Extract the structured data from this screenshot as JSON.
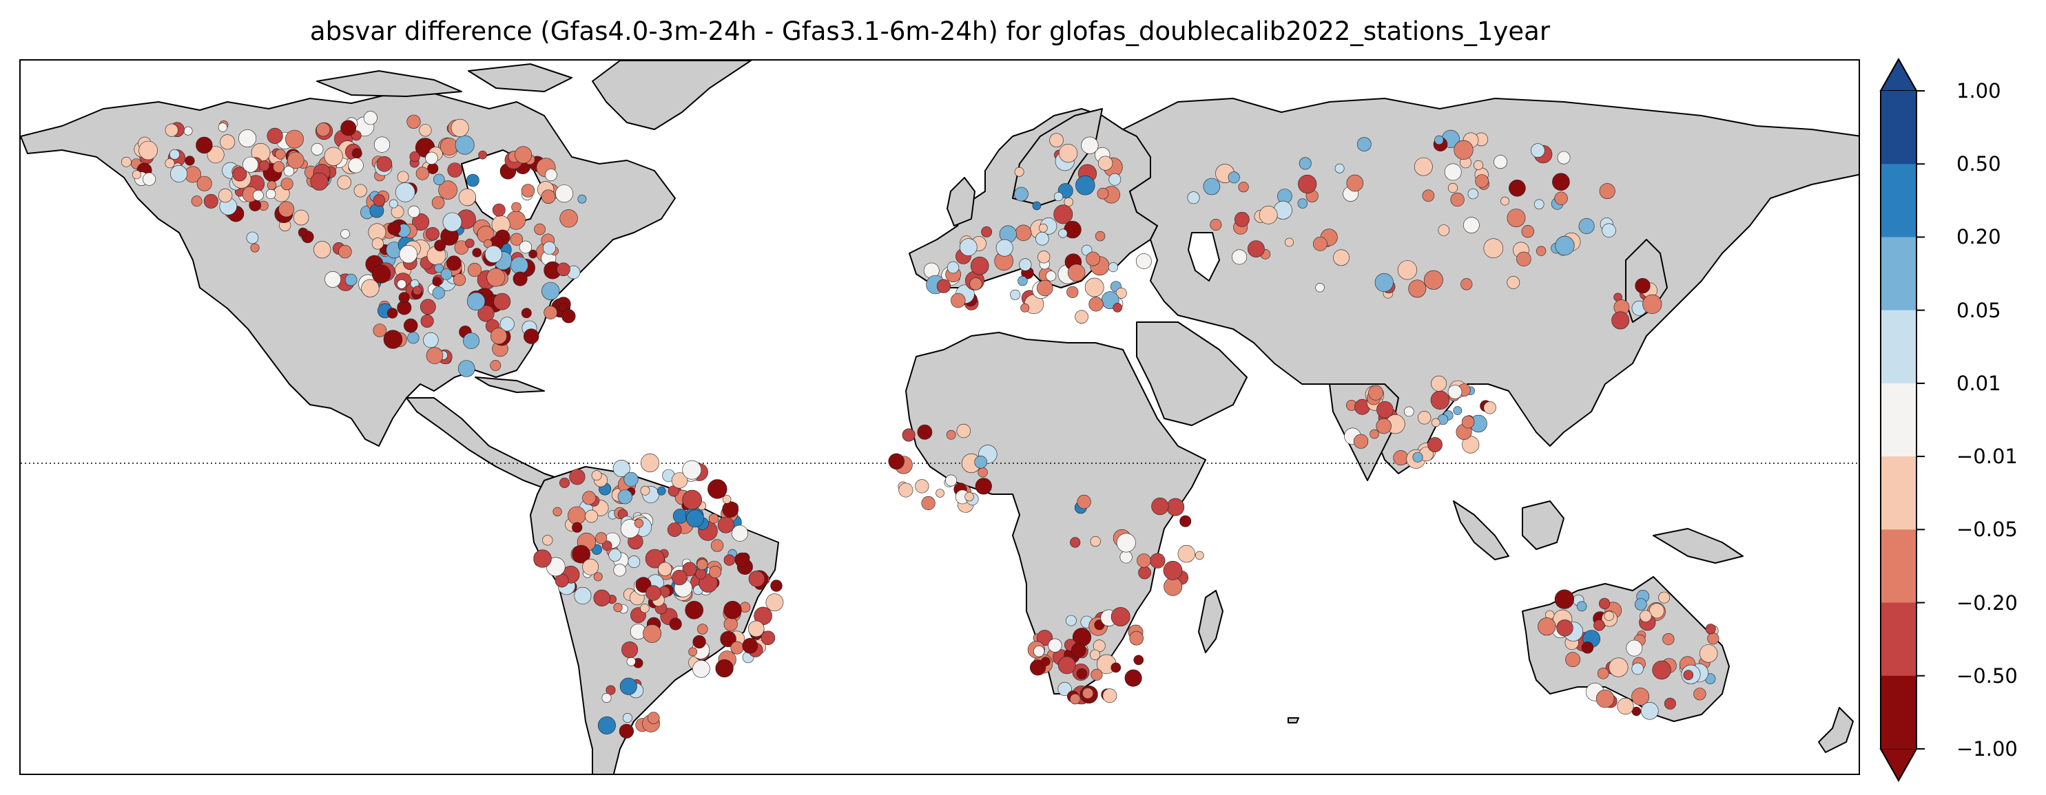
{
  "title": "absvar difference (Gfas4.0-3m-24h - Gfas3.1-6m-24h) for glofas_doublecalib2022_stations_1year",
  "colorbar": {
    "extend": "both",
    "boundaries": [
      -1.0,
      -0.5,
      -0.2,
      -0.05,
      -0.01,
      0.01,
      0.05,
      0.2,
      0.5,
      1.0
    ],
    "tick_labels": [
      "−1.00",
      "−0.50",
      "−0.20",
      "−0.05",
      "−0.01",
      "0.01",
      "0.05",
      "0.20",
      "0.50",
      "1.00"
    ],
    "colors": [
      "#8b0b0d",
      "#c44343",
      "#e17e68",
      "#f7c9b1",
      "#f4f3f2",
      "#c8e0ee",
      "#78b2d6",
      "#2a80bd",
      "#1d4a8e"
    ],
    "under_color": "#8b0b0d",
    "over_color": "#1d4a8e"
  },
  "map": {
    "projection": "PlateCarree",
    "land_color": "#cccccc",
    "coastline_color": "#000000",
    "equator_line": "dotted"
  }
}
